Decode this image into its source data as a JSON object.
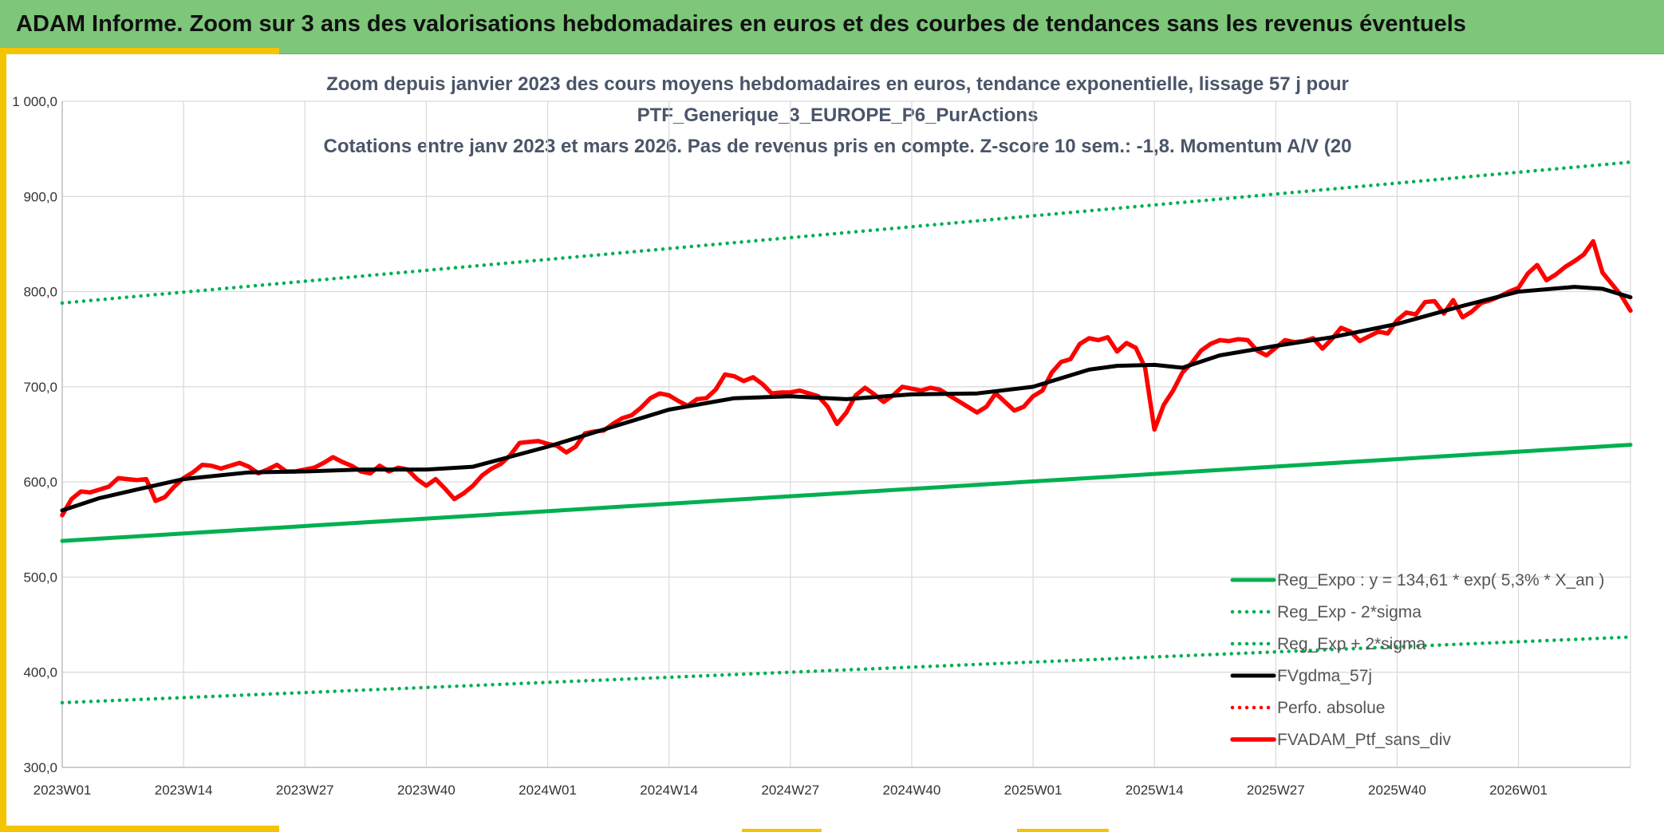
{
  "header": {
    "title": "ADAM Informe. Zoom sur 3 ans des valorisations hebdomadaires en euros et des courbes de tendances sans les revenus éventuels"
  },
  "colors": {
    "banner": "#7dc67a",
    "accent": "#f5c400",
    "reg_expo": "#00b050",
    "portfolio": "#ff0000",
    "smoothed": "#000000"
  },
  "chart_data": {
    "type": "line",
    "title_lines": [
      "Zoom depuis janvier 2023 des cours moyens hebdomadaires en euros, tendance exponentielle, lissage 57 j pour",
      "PTF_Generique_3_EUROPE_P6_PurActions",
      "Cotations entre janv 2023 et mars 2026. Pas de revenus pris en compte. Z-score 10 sem.: -1,8. Momentum A/V (20"
    ],
    "ylim": [
      300,
      1000
    ],
    "y_ticks": [
      1000,
      900,
      800,
      700,
      600,
      500,
      400,
      300
    ],
    "y_tick_labels": [
      "1 000,0",
      "900,0",
      "800,0",
      "700,0",
      "600,0",
      "500,0",
      "400,0",
      "300,0"
    ],
    "x_tick_labels": [
      "2023W01",
      "2023W14",
      "2023W27",
      "2023W40",
      "2024W01",
      "2024W14",
      "2024W27",
      "2024W40",
      "2025W01",
      "2025W14",
      "2025W27",
      "2025W40",
      "2026W01"
    ],
    "x_tick_weeks": [
      0,
      13,
      26,
      39,
      52,
      65,
      78,
      91,
      104,
      117,
      130,
      143,
      156
    ],
    "x_max_week": 168,
    "grid": true,
    "legend_position": "bottom-right",
    "legend": [
      {
        "label": "Reg_Expo : y = 134,61 * exp( 5,3% *  X_an )",
        "color": "#00b050",
        "style": "solid"
      },
      {
        "label": "Reg_Exp - 2*sigma",
        "color": "#00b050",
        "style": "dotted"
      },
      {
        "label": "Reg_Exp + 2*sigma",
        "color": "#00b050",
        "style": "dotted"
      },
      {
        "label": "FVgdma_57j",
        "color": "#000000",
        "style": "solid"
      },
      {
        "label": "Perfo. absolue",
        "color": "#ff0000",
        "style": "dotted"
      },
      {
        "label": "FVADAM_Ptf_sans_div",
        "color": "#ff0000",
        "style": "solid"
      }
    ],
    "series": [
      {
        "name": "Reg_Expo : y = 134,61 * exp( 5,3% *  X_an )",
        "color": "#00b050",
        "style": "solid",
        "x": [
          0,
          168
        ],
        "values": [
          538,
          639
        ]
      },
      {
        "name": "Reg_Exp - 2*sigma",
        "color": "#00b050",
        "style": "dotted",
        "x": [
          0,
          168
        ],
        "values": [
          368,
          437
        ]
      },
      {
        "name": "Reg_Exp + 2*sigma",
        "color": "#00b050",
        "style": "dotted",
        "x": [
          0,
          168
        ],
        "values": [
          788,
          936
        ]
      },
      {
        "name": "FVgdma_57j",
        "color": "#000000",
        "style": "solid",
        "x": [
          0,
          4,
          8,
          13,
          20,
          26,
          32,
          39,
          44,
          52,
          58,
          65,
          72,
          78,
          84,
          91,
          98,
          104,
          110,
          113,
          117,
          120,
          124,
          130,
          136,
          143,
          150,
          156,
          162,
          165,
          168
        ],
        "values": [
          570,
          583,
          592,
          603,
          610,
          611,
          613,
          613,
          616,
          637,
          655,
          676,
          688,
          690,
          687,
          692,
          693,
          700,
          718,
          722,
          723,
          720,
          733,
          743,
          752,
          766,
          785,
          800,
          805,
          803,
          794
        ]
      },
      {
        "name": "FVADAM_Ptf_sans_div",
        "color": "#ff0000",
        "style": "solid",
        "x": [
          0,
          1,
          2,
          3,
          4,
          5,
          6,
          7,
          8,
          9,
          10,
          11,
          12,
          13,
          14,
          15,
          16,
          17,
          18,
          19,
          20,
          21,
          22,
          23,
          24,
          25,
          26,
          27,
          28,
          29,
          30,
          31,
          32,
          33,
          34,
          35,
          36,
          37,
          38,
          39,
          40,
          41,
          42,
          43,
          44,
          45,
          46,
          47,
          48,
          49,
          50,
          51,
          52,
          53,
          54,
          55,
          56,
          57,
          58,
          59,
          60,
          61,
          62,
          63,
          64,
          65,
          66,
          67,
          68,
          69,
          70,
          71,
          72,
          73,
          74,
          75,
          76,
          77,
          78,
          79,
          80,
          81,
          82,
          83,
          84,
          85,
          86,
          87,
          88,
          89,
          90,
          91,
          92,
          93,
          94,
          95,
          96,
          97,
          98,
          99,
          100,
          101,
          102,
          103,
          104,
          105,
          106,
          107,
          108,
          109,
          110,
          111,
          112,
          113,
          114,
          115,
          116,
          117,
          118,
          119,
          120,
          121,
          122,
          123,
          124,
          125,
          126,
          127,
          128,
          129,
          130,
          131,
          132,
          133,
          134,
          135,
          136,
          137,
          138,
          139,
          140,
          141,
          142,
          143,
          144,
          145,
          146,
          147,
          148,
          149,
          150,
          151,
          152,
          153,
          154,
          155,
          156,
          157,
          158,
          159,
          160,
          161,
          162,
          163,
          164,
          165,
          166,
          167,
          168
        ],
        "values": [
          565,
          582,
          590,
          589,
          592,
          595,
          604,
          603,
          602,
          603,
          580,
          584,
          595,
          604,
          610,
          618,
          617,
          614,
          617,
          620,
          616,
          609,
          613,
          618,
          611,
          611,
          613,
          615,
          620,
          626,
          621,
          617,
          611,
          609,
          617,
          611,
          615,
          613,
          603,
          596,
          603,
          593,
          582,
          588,
          596,
          607,
          614,
          619,
          628,
          641,
          642,
          643,
          640,
          638,
          631,
          637,
          651,
          653,
          654,
          661,
          667,
          670,
          678,
          688,
          693,
          691,
          685,
          680,
          687,
          688,
          697,
          713,
          711,
          706,
          710,
          703,
          693,
          694,
          694,
          696,
          693,
          690,
          679,
          661,
          673,
          691,
          699,
          692,
          684,
          691,
          700,
          698,
          696,
          699,
          697,
          691,
          685,
          679,
          673,
          679,
          693,
          684,
          675,
          679,
          690,
          696,
          715,
          726,
          729,
          745,
          751,
          749,
          752,
          737,
          746,
          741,
          720,
          655,
          681,
          696,
          715,
          725,
          738,
          745,
          749,
          748,
          750,
          749,
          738,
          733,
          741,
          749,
          747,
          748,
          751,
          740,
          750,
          762,
          758,
          748,
          753,
          758,
          756,
          770,
          778,
          776,
          789,
          790,
          777,
          791,
          773,
          779,
          788,
          791,
          795,
          800,
          804,
          819,
          828,
          812,
          818,
          826,
          832,
          839,
          853,
          820,
          808,
          796,
          780
        ]
      }
    ]
  }
}
